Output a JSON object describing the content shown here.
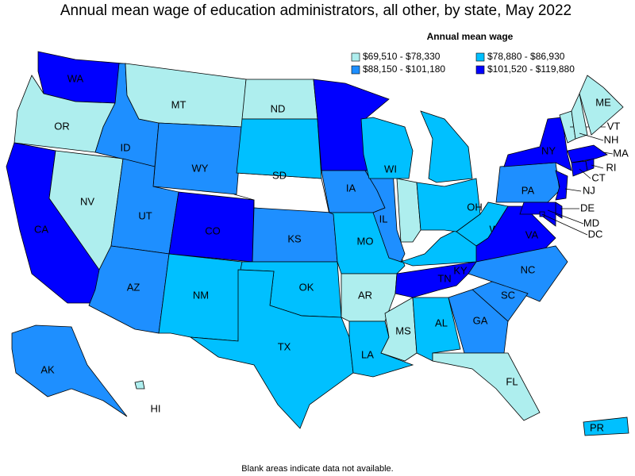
{
  "title": "Annual mean wage of education administrators, all other, by state, May 2022",
  "legend": {
    "title": "Annual mean wage",
    "bins": [
      {
        "label": "$69,510 - $78,330",
        "color": "#aeeeee"
      },
      {
        "label": "$78,880 - $86,930",
        "color": "#00c0ff"
      },
      {
        "label": "$88,150 - $101,180",
        "color": "#1e8fff"
      },
      {
        "label": "$101,520 - $119,880",
        "color": "#0000ff"
      }
    ]
  },
  "states": [
    {
      "label": "WA",
      "bin": 3
    },
    {
      "label": "OR",
      "bin": 0
    },
    {
      "label": "CA",
      "bin": 3
    },
    {
      "label": "NV",
      "bin": 0
    },
    {
      "label": "ID",
      "bin": 2
    },
    {
      "label": "MT",
      "bin": 0
    },
    {
      "label": "WY",
      "bin": 2
    },
    {
      "label": "UT",
      "bin": 2
    },
    {
      "label": "CO",
      "bin": 3
    },
    {
      "label": "AZ",
      "bin": 2
    },
    {
      "label": "NM",
      "bin": 1
    },
    {
      "label": "ND",
      "bin": 0
    },
    {
      "label": "SD",
      "bin": 1
    },
    {
      "label": "KS",
      "bin": 2
    },
    {
      "label": "OK",
      "bin": 1
    },
    {
      "label": "TX",
      "bin": 1
    },
    {
      "label": "MN",
      "bin": 3
    },
    {
      "label": "IA",
      "bin": 2
    },
    {
      "label": "MO",
      "bin": 1
    },
    {
      "label": "AR",
      "bin": 0
    },
    {
      "label": "LA",
      "bin": 1
    },
    {
      "label": "MS",
      "bin": 0
    },
    {
      "label": "AL",
      "bin": 1
    },
    {
      "label": "TN",
      "bin": 3
    },
    {
      "label": "KY",
      "bin": 1
    },
    {
      "label": "IL",
      "bin": 2
    },
    {
      "label": "WI",
      "bin": 1
    },
    {
      "label": "MI",
      "bin": 1
    },
    {
      "label": "IN",
      "bin": 0
    },
    {
      "label": "OH",
      "bin": 1
    },
    {
      "label": "WV",
      "bin": 1
    },
    {
      "label": "VA",
      "bin": 3
    },
    {
      "label": "NC",
      "bin": 2
    },
    {
      "label": "SC",
      "bin": 2
    },
    {
      "label": "GA",
      "bin": 2
    },
    {
      "label": "FL",
      "bin": 0
    },
    {
      "label": "PA",
      "bin": 2
    },
    {
      "label": "NY",
      "bin": 3
    },
    {
      "label": "VT",
      "bin": 0
    },
    {
      "label": "NH",
      "bin": 0
    },
    {
      "label": "ME",
      "bin": 0
    },
    {
      "label": "MA",
      "bin": 3
    },
    {
      "label": "CT",
      "bin": 3
    },
    {
      "label": "RI",
      "bin": 3
    },
    {
      "label": "NJ",
      "bin": 3
    },
    {
      "label": "DE",
      "bin": 3
    },
    {
      "label": "MD",
      "bin": 3
    },
    {
      "label": "DC",
      "bin": 3
    },
    {
      "label": "AK",
      "bin": 2
    },
    {
      "label": "HI",
      "bin": 0
    },
    {
      "label": "PR",
      "bin": 1
    }
  ],
  "note": "Blank areas indicate data not available."
}
